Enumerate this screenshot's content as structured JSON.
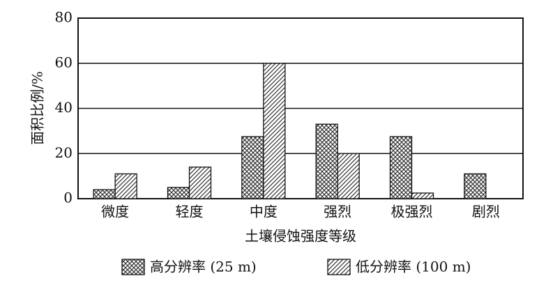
{
  "chart_data": {
    "type": "bar",
    "xlabel": "土壤侵蚀强度等级",
    "ylabel": "面积比例/%",
    "categories": [
      "微度",
      "轻度",
      "中度",
      "强烈",
      "极强烈",
      "剧烈"
    ],
    "series": [
      {
        "name": "高分辨率 (25 m)",
        "color": "#333333",
        "hatch": "cross",
        "values": [
          4,
          5,
          27.5,
          33,
          27.5,
          11
        ]
      },
      {
        "name": "低分辨率 (100 m)",
        "color": "#333333",
        "hatch": "diagonal",
        "values": [
          11,
          14,
          60,
          20,
          2.5,
          0
        ]
      }
    ],
    "ylim": [
      0,
      80
    ],
    "yticks": [
      0,
      20,
      40,
      60,
      80
    ],
    "grid": true
  }
}
